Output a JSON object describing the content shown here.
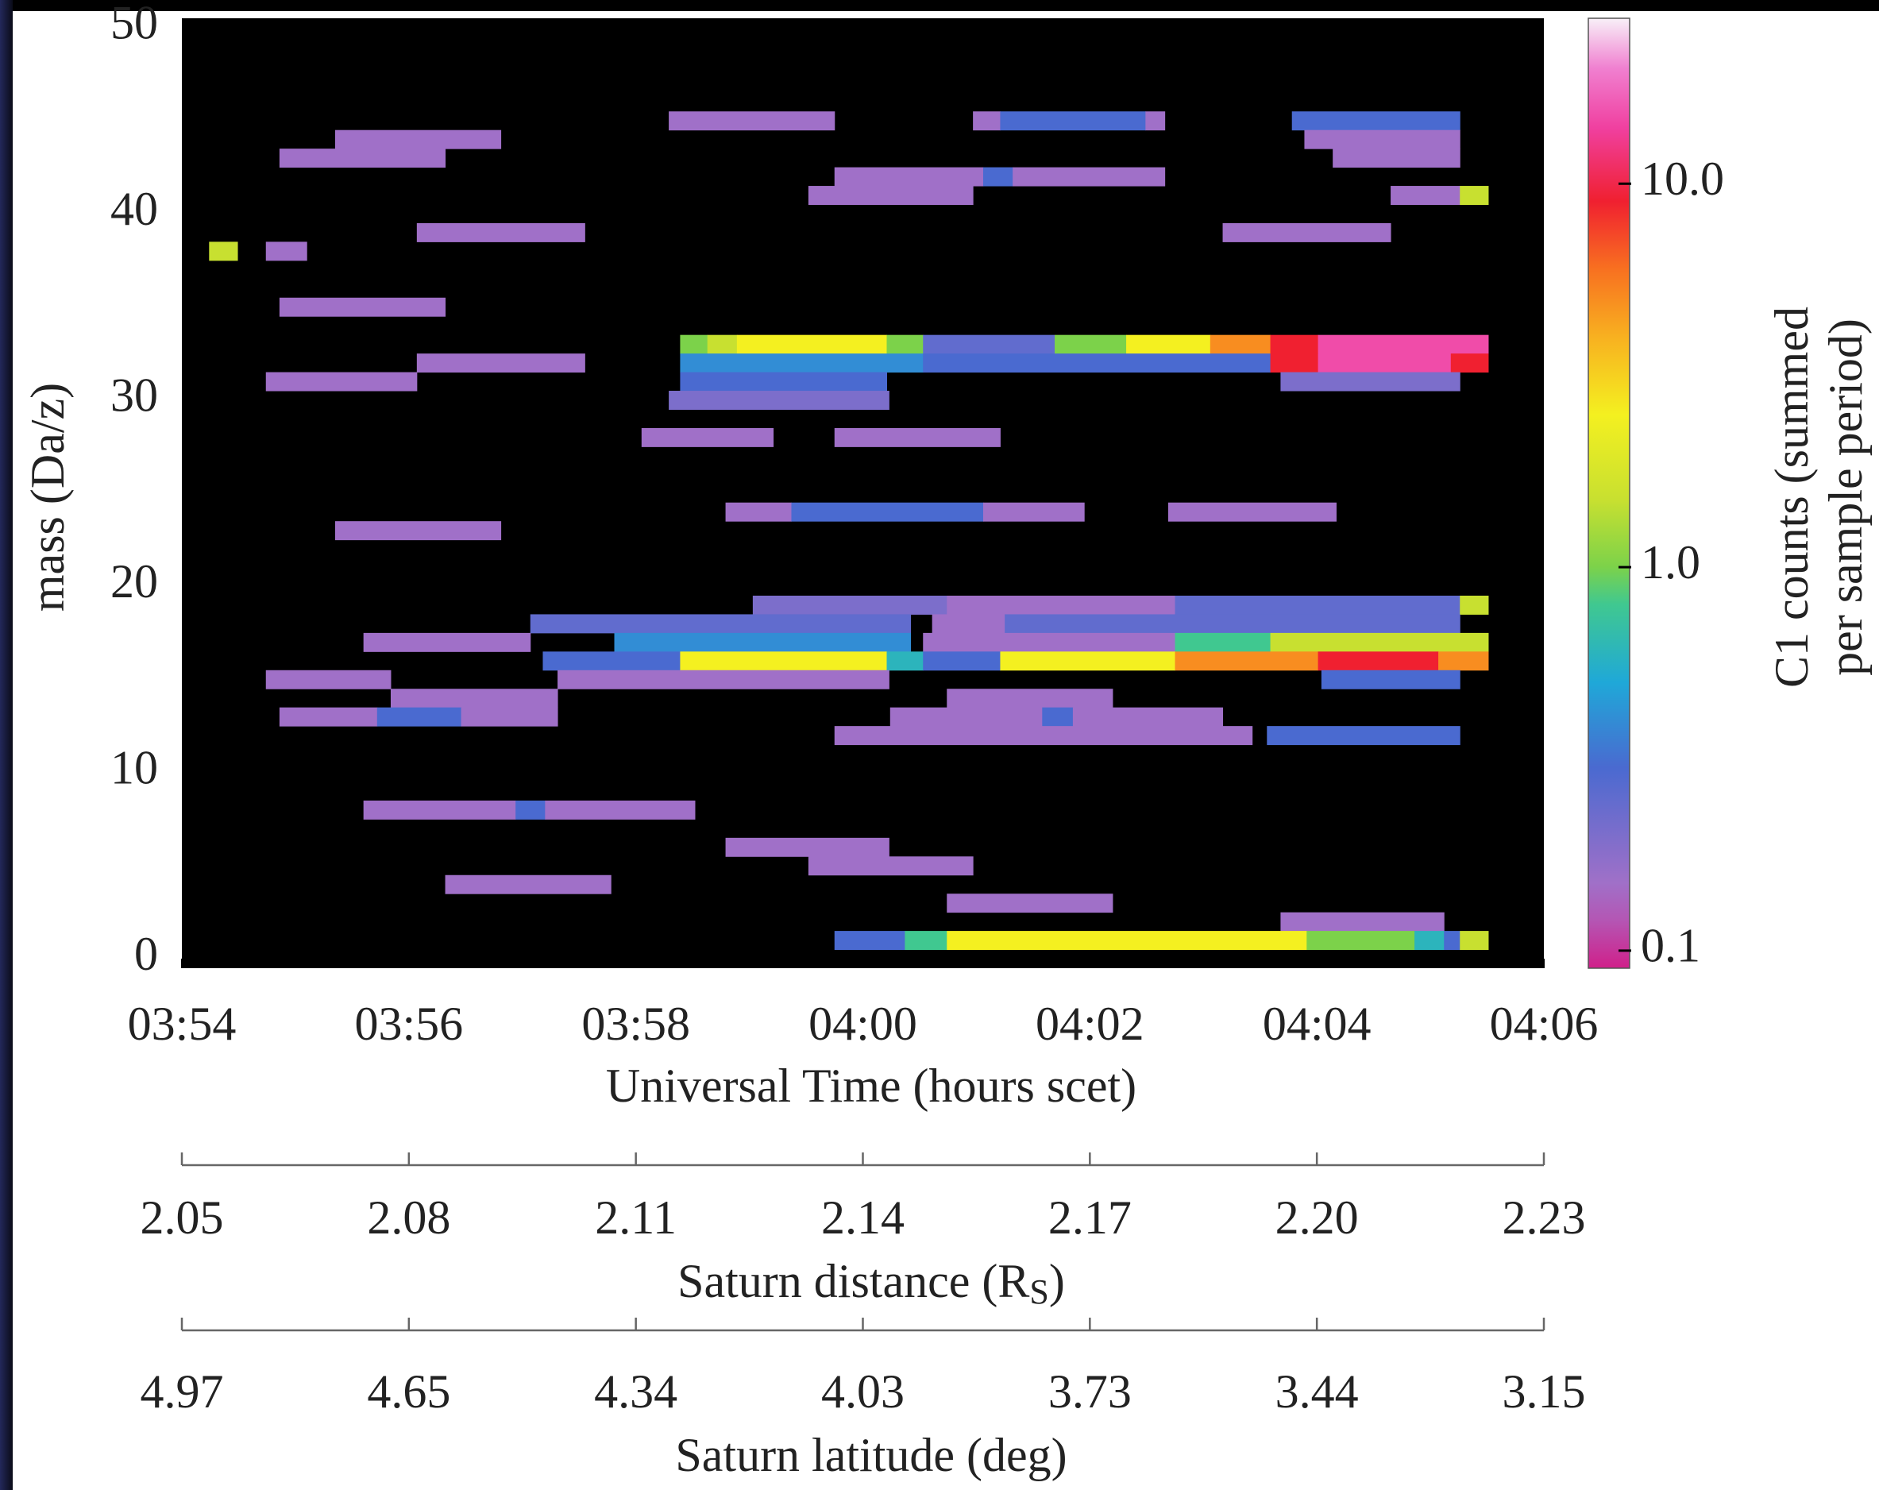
{
  "chart_data": {
    "type": "heatmap",
    "x_label": "Universal Time (hours scet)",
    "y_label": "mass (Da/z)",
    "colorbar_label": [
      "C1 counts (summed",
      "per sample period)"
    ],
    "xlim": [
      234,
      246
    ],
    "xticks": [
      {
        "value": 234,
        "label": "03:54"
      },
      {
        "value": 236,
        "label": "03:56"
      },
      {
        "value": 238,
        "label": "03:58"
      },
      {
        "value": 240,
        "label": "04:00"
      },
      {
        "value": 242,
        "label": "04:02"
      },
      {
        "value": 244,
        "label": "04:04"
      },
      {
        "value": 246,
        "label": "04:06"
      }
    ],
    "ylim": [
      -0.5,
      50.5
    ],
    "yticks": [
      0,
      10,
      20,
      30,
      40,
      50
    ],
    "zscale": "log",
    "zlim": [
      0.09,
      27
    ],
    "zticks": [
      0.1,
      {
        "value": 1,
        "label": "1.0"
      },
      {
        "value": 10,
        "label": "10.0"
      }
    ],
    "colormap": [
      {
        "value": 0.09,
        "color": "#d0208a"
      },
      {
        "value": 0.12,
        "color": "#b456b4"
      },
      {
        "value": 0.15,
        "color": "#a070c8"
      },
      {
        "value": 0.3,
        "color": "#4a6ad0"
      },
      {
        "value": 0.5,
        "color": "#1fa8d8"
      },
      {
        "value": 0.8,
        "color": "#40c890"
      },
      {
        "value": 1.0,
        "color": "#7cd24a"
      },
      {
        "value": 1.5,
        "color": "#c8e030"
      },
      {
        "value": 2.5,
        "color": "#f4f020"
      },
      {
        "value": 4,
        "color": "#f8b020"
      },
      {
        "value": 6,
        "color": "#f87020"
      },
      {
        "value": 9,
        "color": "#f02030"
      },
      {
        "value": 14,
        "color": "#f040a0"
      },
      {
        "value": 20,
        "color": "#f080d0"
      },
      {
        "value": 27,
        "color": "#f8f0f8"
      }
    ],
    "cells": [
      {
        "mass": 45,
        "start": 238.29,
        "end": 239.75,
        "value": 0.15
      },
      {
        "mass": 45,
        "start": 240.97,
        "end": 241.21,
        "value": 0.15
      },
      {
        "mass": 45,
        "start": 241.21,
        "end": 242.49,
        "value": 0.3
      },
      {
        "mass": 45,
        "start": 242.49,
        "end": 242.66,
        "value": 0.15
      },
      {
        "mass": 45,
        "start": 243.78,
        "end": 245.26,
        "value": 0.3
      },
      {
        "mass": 44,
        "start": 235.35,
        "end": 236.81,
        "value": 0.15
      },
      {
        "mass": 44,
        "start": 243.89,
        "end": 245.26,
        "value": 0.15
      },
      {
        "mass": 43,
        "start": 234.86,
        "end": 236.32,
        "value": 0.15
      },
      {
        "mass": 43,
        "start": 244.14,
        "end": 245.26,
        "value": 0.15
      },
      {
        "mass": 42,
        "start": 239.75,
        "end": 241.06,
        "value": 0.15
      },
      {
        "mass": 42,
        "start": 241.06,
        "end": 241.32,
        "value": 0.3
      },
      {
        "mass": 42,
        "start": 241.32,
        "end": 242.66,
        "value": 0.15
      },
      {
        "mass": 41,
        "start": 239.52,
        "end": 240.97,
        "value": 0.15
      },
      {
        "mass": 41,
        "start": 244.65,
        "end": 245.26,
        "value": 0.15
      },
      {
        "mass": 41,
        "start": 245.26,
        "end": 245.51,
        "value": 1.5
      },
      {
        "mass": 39,
        "start": 236.07,
        "end": 237.55,
        "value": 0.15
      },
      {
        "mass": 39,
        "start": 243.17,
        "end": 244.65,
        "value": 0.15
      },
      {
        "mass": 38,
        "start": 234.24,
        "end": 234.49,
        "value": 1.5
      },
      {
        "mass": 38,
        "start": 234.74,
        "end": 235.1,
        "value": 0.15
      },
      {
        "mass": 35,
        "start": 234.86,
        "end": 236.32,
        "value": 0.15
      },
      {
        "mass": 33,
        "start": 238.39,
        "end": 238.63,
        "value": 1.0
      },
      {
        "mass": 33,
        "start": 238.63,
        "end": 238.89,
        "value": 1.5
      },
      {
        "mass": 33,
        "start": 238.89,
        "end": 240.21,
        "value": 2.5
      },
      {
        "mass": 33,
        "start": 240.21,
        "end": 240.53,
        "value": 1.0
      },
      {
        "mass": 33,
        "start": 240.53,
        "end": 241.69,
        "value": 0.25
      },
      {
        "mass": 33,
        "start": 241.69,
        "end": 242.32,
        "value": 1.0
      },
      {
        "mass": 33,
        "start": 242.32,
        "end": 243.06,
        "value": 2.5
      },
      {
        "mass": 33,
        "start": 243.06,
        "end": 243.59,
        "value": 5
      },
      {
        "mass": 33,
        "start": 243.59,
        "end": 244.01,
        "value": 9
      },
      {
        "mass": 33,
        "start": 244.01,
        "end": 245.51,
        "value": 15
      },
      {
        "mass": 32,
        "start": 236.07,
        "end": 237.55,
        "value": 0.15
      },
      {
        "mass": 32,
        "start": 238.39,
        "end": 240.53,
        "value": 0.4
      },
      {
        "mass": 32,
        "start": 240.53,
        "end": 243.59,
        "value": 0.3
      },
      {
        "mass": 32,
        "start": 243.59,
        "end": 244.01,
        "value": 9
      },
      {
        "mass": 32,
        "start": 244.01,
        "end": 245.18,
        "value": 15
      },
      {
        "mass": 32,
        "start": 245.18,
        "end": 245.51,
        "value": 9
      },
      {
        "mass": 31,
        "start": 234.74,
        "end": 236.07,
        "value": 0.15
      },
      {
        "mass": 31,
        "start": 238.39,
        "end": 240.21,
        "value": 0.3
      },
      {
        "mass": 31,
        "start": 243.68,
        "end": 245.26,
        "value": 0.2
      },
      {
        "mass": 30,
        "start": 238.29,
        "end": 240.23,
        "value": 0.2
      },
      {
        "mass": 28,
        "start": 238.05,
        "end": 239.21,
        "value": 0.15
      },
      {
        "mass": 28,
        "start": 239.75,
        "end": 241.21,
        "value": 0.15
      },
      {
        "mass": 24,
        "start": 238.79,
        "end": 239.37,
        "value": 0.15
      },
      {
        "mass": 24,
        "start": 239.37,
        "end": 241.06,
        "value": 0.3
      },
      {
        "mass": 24,
        "start": 241.06,
        "end": 241.95,
        "value": 0.15
      },
      {
        "mass": 24,
        "start": 242.69,
        "end": 244.17,
        "value": 0.15
      },
      {
        "mass": 23,
        "start": 235.35,
        "end": 236.81,
        "value": 0.15
      },
      {
        "mass": 19,
        "start": 239.03,
        "end": 240.74,
        "value": 0.2
      },
      {
        "mass": 19,
        "start": 240.74,
        "end": 242.75,
        "value": 0.15
      },
      {
        "mass": 19,
        "start": 242.75,
        "end": 245.26,
        "value": 0.25
      },
      {
        "mass": 19,
        "start": 245.26,
        "end": 245.51,
        "value": 1.5
      },
      {
        "mass": 18,
        "start": 237.07,
        "end": 240.42,
        "value": 0.25
      },
      {
        "mass": 18,
        "start": 240.61,
        "end": 241.25,
        "value": 0.15
      },
      {
        "mass": 18,
        "start": 241.25,
        "end": 245.26,
        "value": 0.25
      },
      {
        "mass": 17,
        "start": 235.6,
        "end": 237.07,
        "value": 0.15
      },
      {
        "mass": 17,
        "start": 237.81,
        "end": 240.42,
        "value": 0.4
      },
      {
        "mass": 17,
        "start": 240.53,
        "end": 242.75,
        "value": 0.15
      },
      {
        "mass": 17,
        "start": 242.75,
        "end": 243.59,
        "value": 0.8
      },
      {
        "mass": 17,
        "start": 243.59,
        "end": 245.51,
        "value": 1.5
      },
      {
        "mass": 16,
        "start": 237.18,
        "end": 238.39,
        "value": 0.3
      },
      {
        "mass": 16,
        "start": 238.39,
        "end": 240.21,
        "value": 2.5
      },
      {
        "mass": 16,
        "start": 240.21,
        "end": 240.53,
        "value": 0.6
      },
      {
        "mass": 16,
        "start": 240.53,
        "end": 241.21,
        "value": 0.3
      },
      {
        "mass": 16,
        "start": 241.21,
        "end": 242.75,
        "value": 2.5
      },
      {
        "mass": 16,
        "start": 242.75,
        "end": 244.01,
        "value": 5
      },
      {
        "mass": 16,
        "start": 244.01,
        "end": 245.07,
        "value": 9
      },
      {
        "mass": 16,
        "start": 245.07,
        "end": 245.51,
        "value": 5
      },
      {
        "mass": 15,
        "start": 234.74,
        "end": 235.84,
        "value": 0.15
      },
      {
        "mass": 15,
        "start": 237.31,
        "end": 240.23,
        "value": 0.15
      },
      {
        "mass": 15,
        "start": 244.04,
        "end": 245.26,
        "value": 0.3
      },
      {
        "mass": 14,
        "start": 235.84,
        "end": 237.31,
        "value": 0.15
      },
      {
        "mass": 14,
        "start": 240.74,
        "end": 242.2,
        "value": 0.15
      },
      {
        "mass": 13,
        "start": 234.86,
        "end": 235.72,
        "value": 0.15
      },
      {
        "mass": 13,
        "start": 235.72,
        "end": 236.46,
        "value": 0.3
      },
      {
        "mass": 13,
        "start": 236.46,
        "end": 237.31,
        "value": 0.15
      },
      {
        "mass": 13,
        "start": 240.24,
        "end": 241.58,
        "value": 0.15
      },
      {
        "mass": 13,
        "start": 241.58,
        "end": 241.85,
        "value": 0.3
      },
      {
        "mass": 13,
        "start": 241.85,
        "end": 243.17,
        "value": 0.15
      },
      {
        "mass": 12,
        "start": 239.75,
        "end": 243.43,
        "value": 0.15
      },
      {
        "mass": 12,
        "start": 243.56,
        "end": 245.26,
        "value": 0.3
      },
      {
        "mass": 8,
        "start": 235.6,
        "end": 236.94,
        "value": 0.15
      },
      {
        "mass": 8,
        "start": 236.94,
        "end": 237.2,
        "value": 0.3
      },
      {
        "mass": 8,
        "start": 237.2,
        "end": 238.52,
        "value": 0.15
      },
      {
        "mass": 6,
        "start": 238.79,
        "end": 240.23,
        "value": 0.15
      },
      {
        "mass": 5,
        "start": 239.52,
        "end": 240.97,
        "value": 0.15
      },
      {
        "mass": 4,
        "start": 236.32,
        "end": 237.78,
        "value": 0.15
      },
      {
        "mass": 3,
        "start": 240.74,
        "end": 242.2,
        "value": 0.15
      },
      {
        "mass": 2,
        "start": 243.68,
        "end": 245.12,
        "value": 0.15
      },
      {
        "mass": 1,
        "start": 239.75,
        "end": 240.37,
        "value": 0.3
      },
      {
        "mass": 1,
        "start": 240.37,
        "end": 240.74,
        "value": 0.8
      },
      {
        "mass": 1,
        "start": 240.74,
        "end": 243.91,
        "value": 2.5
      },
      {
        "mass": 1,
        "start": 243.91,
        "end": 244.86,
        "value": 1.0
      },
      {
        "mass": 1,
        "start": 244.86,
        "end": 245.12,
        "value": 0.6
      },
      {
        "mass": 1,
        "start": 245.12,
        "end": 245.26,
        "value": 0.3
      },
      {
        "mass": 1,
        "start": 245.26,
        "end": 245.51,
        "value": 1.5
      }
    ],
    "distance_axis": {
      "label": [
        "Saturn distance (R",
        "S",
        ")"
      ],
      "lim": [
        2.05,
        2.23
      ],
      "ticks": [
        2.05,
        2.08,
        2.11,
        2.14,
        2.17,
        {
          "value": 2.2,
          "label": "2.20"
        },
        2.23
      ]
    },
    "latitude_axis": {
      "label": "Saturn latitude (deg)",
      "ticks": [
        4.97,
        4.65,
        4.34,
        4.03,
        3.73,
        3.44,
        3.15
      ]
    }
  }
}
